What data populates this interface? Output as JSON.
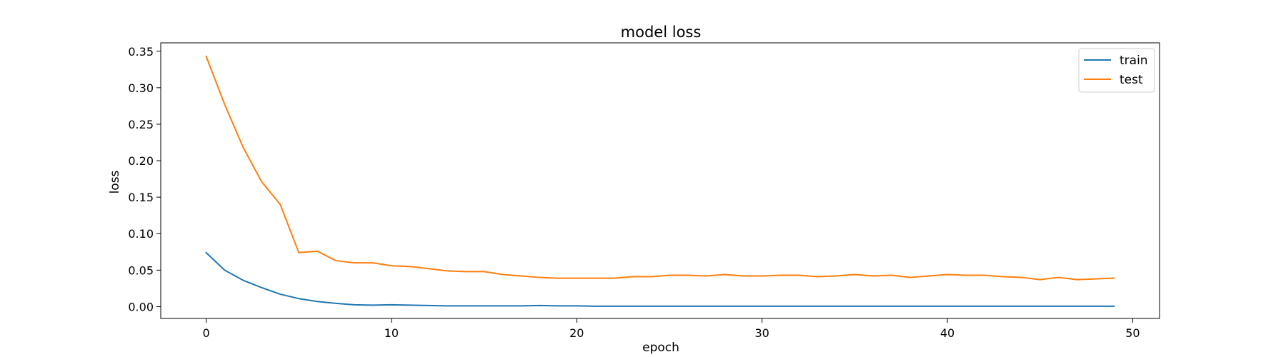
{
  "chart_data": {
    "type": "line",
    "title": "model loss",
    "xlabel": "epoch",
    "ylabel": "loss",
    "xlim": [
      -2.45,
      51.45
    ],
    "ylim": [
      -0.0162,
      0.3615
    ],
    "xticks": [
      0,
      10,
      20,
      30,
      40,
      50
    ],
    "xtick_labels": [
      "0",
      "10",
      "20",
      "30",
      "40",
      "50"
    ],
    "yticks": [
      0.0,
      0.05,
      0.1,
      0.15,
      0.2,
      0.25,
      0.3,
      0.35
    ],
    "ytick_labels": [
      "0.00",
      "0.05",
      "0.10",
      "0.15",
      "0.20",
      "0.25",
      "0.30",
      "0.35"
    ],
    "grid": false,
    "legend_position": "upper right",
    "x": [
      0,
      1,
      2,
      3,
      4,
      5,
      6,
      7,
      8,
      9,
      10,
      11,
      12,
      13,
      14,
      15,
      16,
      17,
      18,
      19,
      20,
      21,
      22,
      23,
      24,
      25,
      26,
      27,
      28,
      29,
      30,
      31,
      32,
      33,
      34,
      35,
      36,
      37,
      38,
      39,
      40,
      41,
      42,
      43,
      44,
      45,
      46,
      47,
      48,
      49
    ],
    "series": [
      {
        "name": "train",
        "color": "#1f77b4",
        "values": [
          0.074,
          0.05,
          0.036,
          0.026,
          0.017,
          0.011,
          0.007,
          0.0045,
          0.0025,
          0.002,
          0.0025,
          0.002,
          0.0015,
          0.001,
          0.001,
          0.001,
          0.001,
          0.001,
          0.0015,
          0.001,
          0.001,
          0.0005,
          0.0005,
          0.0005,
          0.0005,
          0.0005,
          0.0005,
          0.0005,
          0.0005,
          0.0005,
          0.0005,
          0.0005,
          0.0005,
          0.0005,
          0.0005,
          0.0005,
          0.0005,
          0.0005,
          0.0005,
          0.0005,
          0.0005,
          0.0005,
          0.0005,
          0.0005,
          0.0005,
          0.0005,
          0.0005,
          0.0005,
          0.0005,
          0.0005
        ]
      },
      {
        "name": "test",
        "color": "#ff7f0e",
        "values": [
          0.343,
          0.277,
          0.218,
          0.171,
          0.14,
          0.074,
          0.076,
          0.063,
          0.06,
          0.06,
          0.056,
          0.055,
          0.052,
          0.049,
          0.048,
          0.048,
          0.044,
          0.042,
          0.04,
          0.039,
          0.039,
          0.039,
          0.039,
          0.041,
          0.041,
          0.043,
          0.043,
          0.042,
          0.044,
          0.042,
          0.042,
          0.043,
          0.043,
          0.041,
          0.042,
          0.044,
          0.042,
          0.043,
          0.04,
          0.042,
          0.044,
          0.043,
          0.043,
          0.041,
          0.04,
          0.037,
          0.04,
          0.037,
          0.038,
          0.039
        ]
      }
    ]
  }
}
